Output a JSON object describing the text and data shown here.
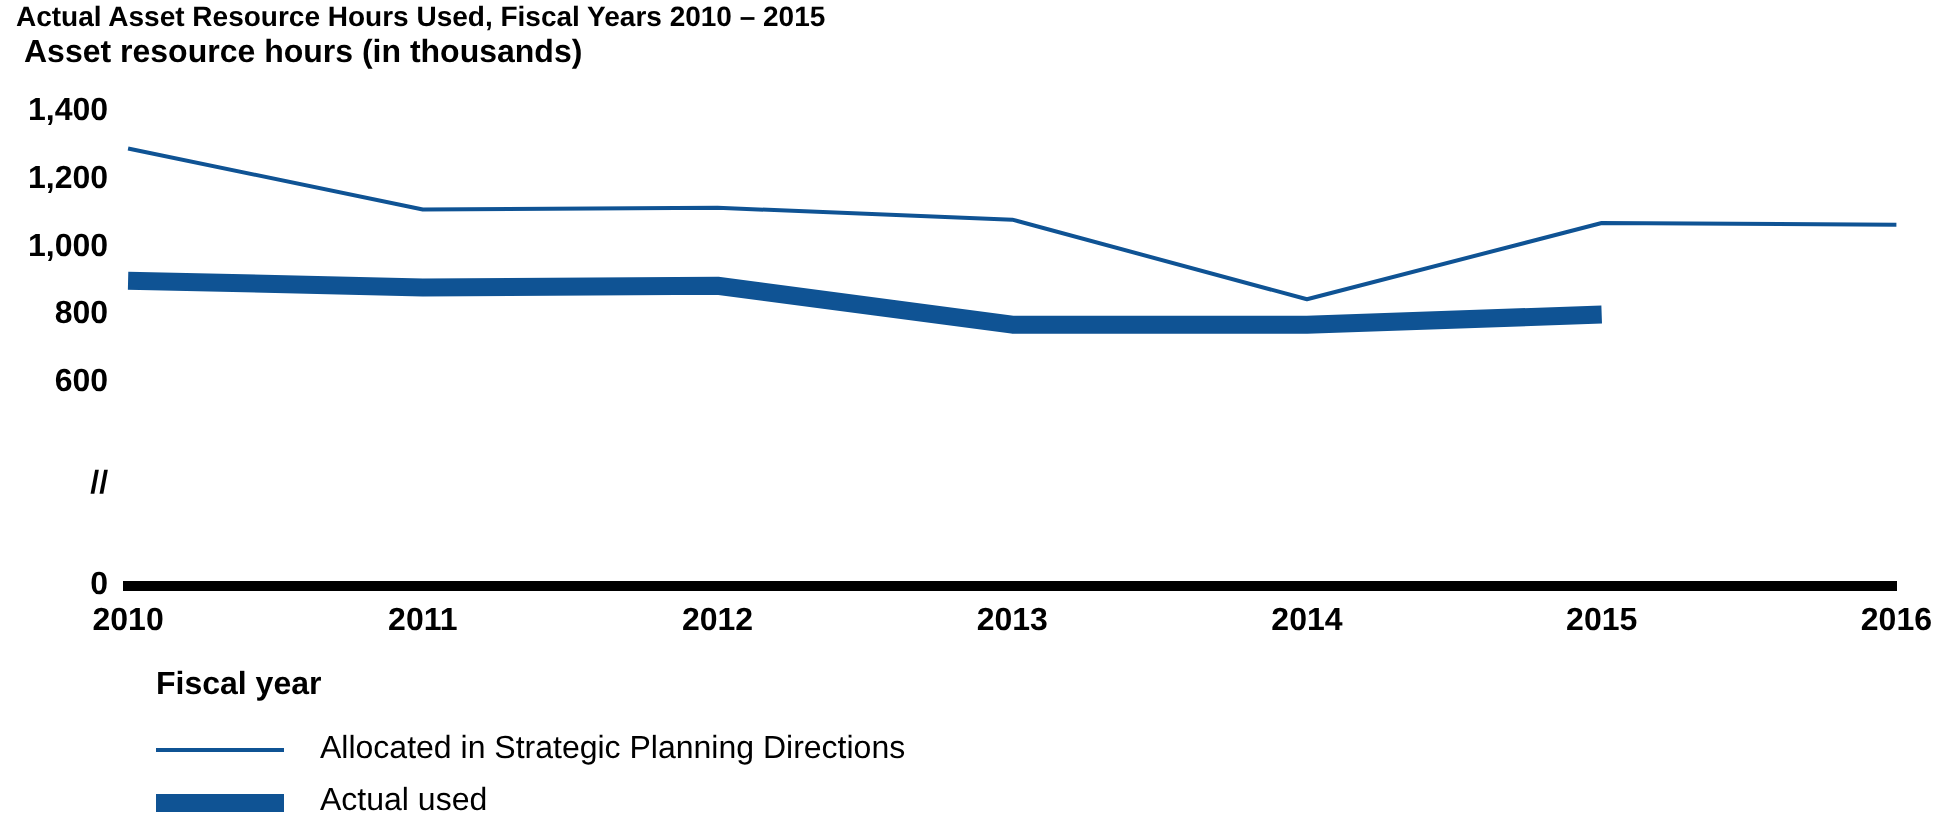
{
  "chart_data": {
    "type": "line",
    "title": "Actual Asset Resource Hours Used, Fiscal Years 2010 – 2015",
    "ylabel": "Asset resource hours (in thousands)",
    "xlabel": "Fiscal year",
    "categories": [
      "2010",
      "2011",
      "2012",
      "2013",
      "2014",
      "2015",
      "2016"
    ],
    "series": [
      {
        "name": "Allocated in Strategic Planning Directions",
        "color": "#0f5394",
        "values": [
          1290,
          1110,
          1115,
          1080,
          845,
          1070,
          1065
        ]
      },
      {
        "name": "Actual used",
        "color": "#0f5394",
        "values": [
          900,
          880,
          885,
          770,
          770,
          800,
          null
        ]
      }
    ],
    "ylim": [
      0,
      1400
    ],
    "yticks": [
      0,
      {
        "value": 300,
        "label": "//"
      },
      600,
      800,
      {
        "value": 1000,
        "label": "1,000"
      },
      {
        "value": 1200,
        "label": "1,200"
      },
      {
        "value": 1400,
        "label": "1,400"
      }
    ],
    "grid": false,
    "legend": "bottom",
    "marker": "none",
    "line_style": "solid"
  }
}
